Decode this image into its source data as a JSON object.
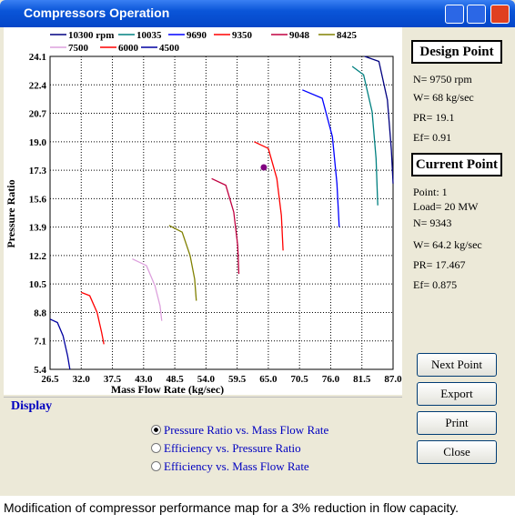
{
  "window": {
    "title": "Compressors Operation"
  },
  "chart_data": {
    "type": "line",
    "xlabel": "Mass Flow Rate (kg/sec)",
    "ylabel": "Pressure Ratio",
    "xlim": [
      26.5,
      87.0
    ],
    "xticks": [
      26.5,
      {
        "value": 32,
        "label": "32.0"
      },
      37.5,
      {
        "value": 43,
        "label": "43.0"
      },
      48.5,
      {
        "value": 54,
        "label": "54.0"
      },
      59.5,
      {
        "value": 65,
        "label": "65.0"
      },
      70.5,
      {
        "value": 76,
        "label": "76.0"
      },
      81.5,
      {
        "value": 87,
        "label": "87.0"
      }
    ],
    "ylim": [
      5.4,
      24.1
    ],
    "yticks": [
      5.4,
      7.1,
      8.8,
      10.5,
      12.2,
      13.9,
      15.6,
      17.3,
      {
        "value": 19,
        "label": "19.0"
      },
      20.7,
      22.4,
      24.1
    ],
    "grid": true,
    "series": [
      {
        "name": "10300 rpm",
        "color": "#000080",
        "x": [
          82.0,
          84.5,
          86.0,
          86.7,
          87.0
        ],
        "values": [
          24.1,
          23.8,
          21.5,
          18.5,
          16.5
        ]
      },
      {
        "name": "10035",
        "color": "#008080",
        "x": [
          79.8,
          81.8,
          83.3,
          84.0,
          84.3
        ],
        "values": [
          23.5,
          23.0,
          20.8,
          18.0,
          15.2
        ]
      },
      {
        "name": "9690",
        "color": "#0000ff",
        "x": [
          71.0,
          74.5,
          76.3,
          77.1,
          77.5
        ],
        "values": [
          22.1,
          21.6,
          19.3,
          16.5,
          13.9
        ]
      },
      {
        "name": "9350",
        "color": "#ff0000",
        "x": [
          62.5,
          65.0,
          66.5,
          67.3,
          67.6
        ],
        "values": [
          19.0,
          18.6,
          16.8,
          14.6,
          12.5
        ]
      },
      {
        "name": "9048",
        "color": "#c00040",
        "x": [
          55.0,
          57.5,
          58.9,
          59.6,
          59.8
        ],
        "values": [
          16.8,
          16.4,
          14.8,
          12.8,
          11.1
        ]
      },
      {
        "name": "8425",
        "color": "#808000",
        "x": [
          47.5,
          49.8,
          51.2,
          52.0,
          52.3
        ],
        "values": [
          14.0,
          13.6,
          12.2,
          10.8,
          9.5
        ]
      },
      {
        "name": "7500",
        "color": "#dda0dd",
        "x": [
          41.0,
          43.5,
          45.0,
          45.9,
          46.2
        ],
        "values": [
          12.0,
          11.6,
          10.4,
          9.2,
          8.3
        ]
      },
      {
        "name": "6000",
        "color": "#ff0000",
        "x": [
          32.0,
          33.5,
          34.8,
          35.6,
          36.0
        ],
        "values": [
          10.0,
          9.8,
          8.8,
          7.6,
          6.9
        ]
      },
      {
        "name": "4500",
        "color": "#0000a0",
        "x": [
          26.5,
          27.8,
          28.8,
          29.6,
          30.0
        ],
        "values": [
          8.4,
          8.2,
          7.4,
          6.2,
          5.4
        ]
      }
    ],
    "marker": {
      "x": 64.2,
      "y": 17.467,
      "color": "#800080"
    }
  },
  "design_point": {
    "title": "Design Point",
    "lines": [
      "N= 9750 rpm",
      "W= 68 kg/sec",
      "PR= 19.1",
      "Ef= 0.91"
    ]
  },
  "current_point": {
    "title": "Current Point",
    "lines": [
      "Point: 1",
      "Load= 20 MW",
      "N= 9343",
      "W= 64.2 kg/sec",
      "PR= 17.467",
      "Ef= 0.875"
    ]
  },
  "display": {
    "title": "Display",
    "options": [
      "Pressure Ratio vs. Mass Flow Rate",
      "Efficiency vs. Pressure Ratio",
      "Efficiency vs. Mass Flow Rate"
    ]
  },
  "buttons": [
    "Next Point",
    "Export",
    "Print",
    "Close"
  ],
  "caption": "Modification of compressor performance map for a 3% reduction in flow capacity."
}
